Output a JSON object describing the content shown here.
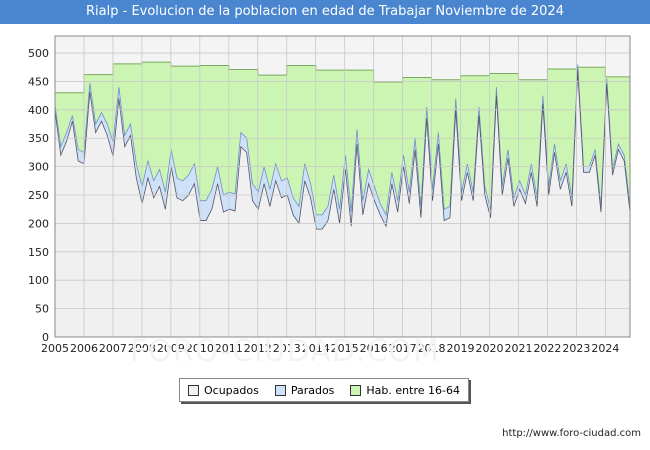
{
  "header": {
    "title": "Rialp - Evolucion de la poblacion en edad de Trabajar Noviembre de 2024"
  },
  "watermark": "FORO-CIUDAD.COM",
  "source": "http://www.foro-ciudad.com",
  "colors": {
    "title_bg": "#4a86cf",
    "hab": "#ccf5b4",
    "hab_line": "#7aa85c",
    "parados": "#cfe1f8",
    "parados_line": "#6f8fc9",
    "ocupados": "#f0f0f0",
    "ocupados_line": "#555566"
  },
  "chart_data": {
    "type": "area",
    "title": "Rialp - Evolucion de la poblacion en edad de Trabajar Noviembre de 2024",
    "xlabel": "",
    "ylabel": "",
    "ylim": [
      0,
      530
    ],
    "xlim": [
      2005,
      2024.85
    ],
    "yticks": [
      0,
      50,
      100,
      150,
      200,
      250,
      300,
      350,
      400,
      450,
      500
    ],
    "xticks": [
      "2005",
      "2006",
      "2007",
      "2008",
      "2009",
      "2010",
      "2011",
      "2012",
      "2013",
      "2014",
      "2015",
      "2016",
      "2017",
      "2018",
      "2019",
      "2020",
      "2021",
      "2022",
      "2023",
      "2024"
    ],
    "grid": true,
    "legend": [
      "Ocupados",
      "Parados",
      "Hab. entre 16-64"
    ],
    "legend_position": "bottom",
    "hab_16_64": [
      430,
      462,
      481,
      484,
      477,
      478,
      471,
      461,
      478,
      470,
      470,
      449,
      457,
      453,
      460,
      464,
      453,
      472,
      475,
      458
    ],
    "series": [
      {
        "name": "Ocupados",
        "values": [
          398,
          320,
          345,
          380,
          310,
          305,
          432,
          360,
          380,
          355,
          318,
          420,
          335,
          355,
          280,
          235,
          280,
          245,
          265,
          225,
          300,
          245,
          240,
          250,
          270,
          205,
          205,
          225,
          270,
          220,
          225,
          222,
          335,
          325,
          240,
          225,
          270,
          230,
          275,
          245,
          250,
          215,
          200,
          275,
          245,
          190,
          190,
          205,
          260,
          200,
          295,
          195,
          340,
          215,
          270,
          240,
          215,
          195,
          270,
          220,
          300,
          235,
          330,
          210,
          385,
          240,
          340,
          205,
          210,
          400,
          240,
          290,
          240,
          390,
          250,
          210,
          425,
          250,
          315,
          230,
          260,
          235,
          290,
          230,
          410,
          250,
          325,
          260,
          290,
          230,
          470,
          290,
          290,
          320,
          220,
          445,
          285,
          330,
          310,
          220
        ]
      },
      {
        "name": "Parados",
        "values": [
          10,
          15,
          15,
          10,
          20,
          20,
          15,
          15,
          15,
          20,
          25,
          20,
          20,
          20,
          25,
          30,
          30,
          30,
          30,
          30,
          30,
          35,
          35,
          35,
          35,
          35,
          35,
          35,
          30,
          30,
          30,
          30,
          25,
          25,
          30,
          30,
          30,
          30,
          30,
          30,
          30,
          30,
          30,
          30,
          25,
          25,
          25,
          25,
          25,
          25,
          25,
          25,
          25,
          25,
          25,
          25,
          20,
          20,
          20,
          20,
          20,
          20,
          20,
          20,
          20,
          20,
          20,
          20,
          20,
          20,
          15,
          15,
          15,
          15,
          15,
          15,
          15,
          15,
          15,
          15,
          15,
          15,
          15,
          15,
          15,
          15,
          15,
          15,
          15,
          15,
          10,
          10,
          10,
          10,
          10,
          10,
          10,
          10,
          10,
          10
        ]
      }
    ]
  },
  "legend_labels": {
    "ocupados": "Ocupados",
    "parados": "Parados",
    "hab": "Hab. entre 16-64"
  }
}
